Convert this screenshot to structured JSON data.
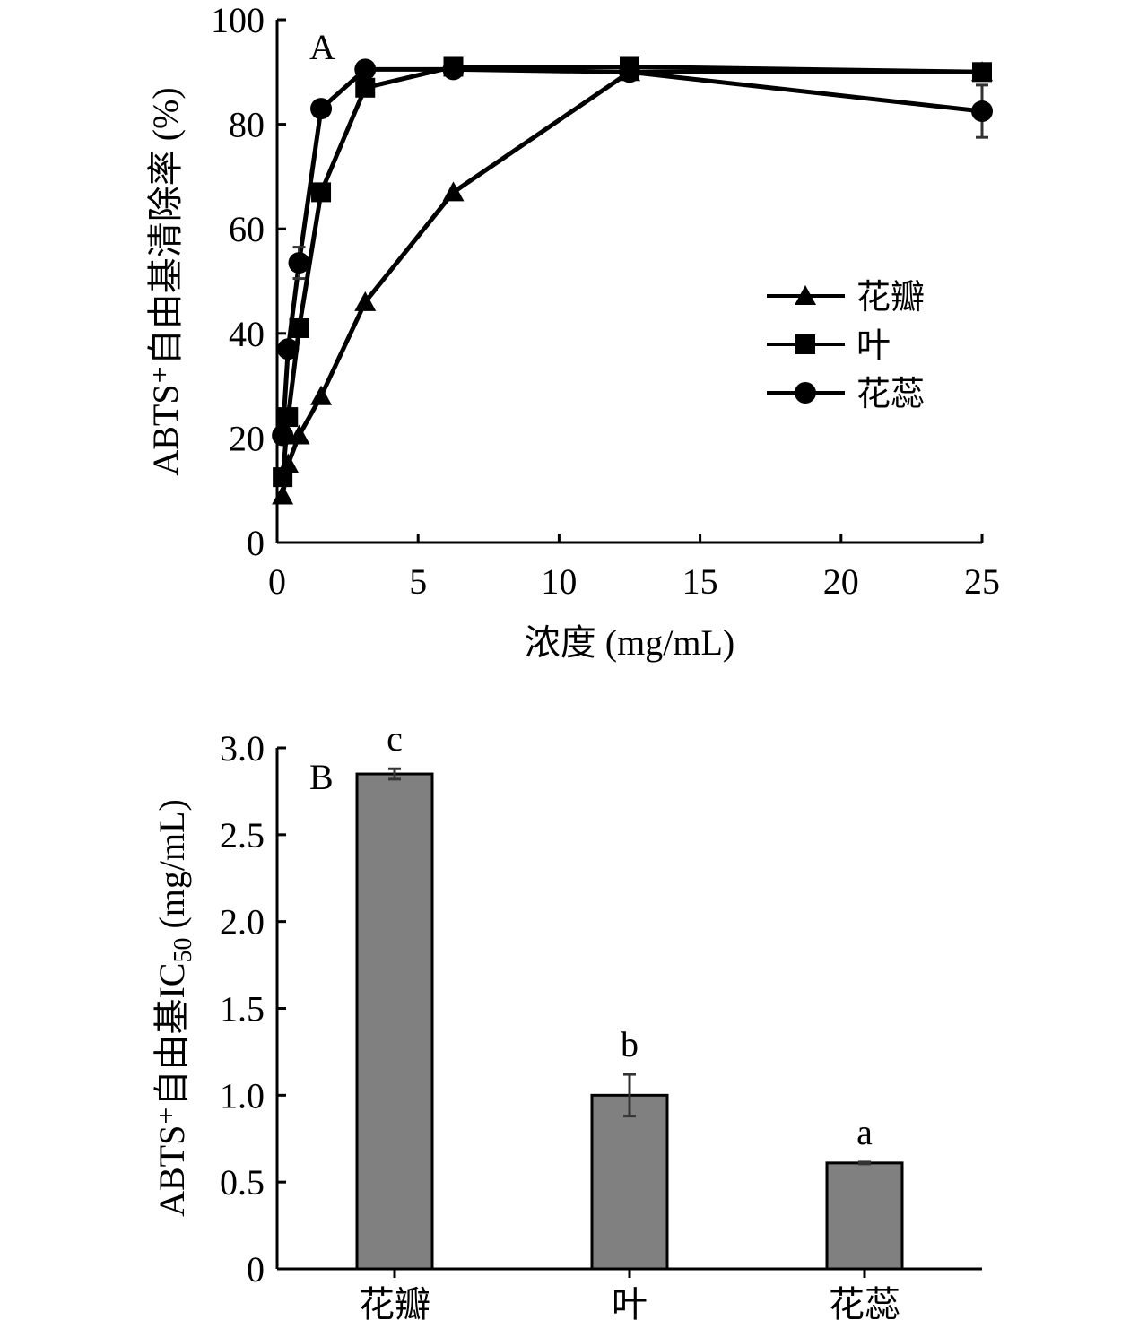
{
  "chart_data": [
    {
      "type": "line",
      "panel_label": "A",
      "xlabel": "浓度 (mg/mL)",
      "ylabel": "ABTS⁺自由基清除率 (%)",
      "xlim": [
        0,
        25
      ],
      "ylim": [
        0,
        100
      ],
      "xticks": [
        "0",
        "5",
        "10",
        "15",
        "20",
        "25"
      ],
      "yticks": [
        "0",
        "20",
        "40",
        "60",
        "80",
        "100"
      ],
      "grid": false,
      "legend_position": "center-right",
      "x": [
        0.195,
        0.39,
        0.78,
        1.56,
        3.125,
        6.25,
        12.5,
        25
      ],
      "series": [
        {
          "name": "花瓣",
          "marker": "triangle",
          "values": [
            9,
            15,
            20.5,
            28,
            46,
            67,
            90,
            90
          ]
        },
        {
          "name": "叶",
          "marker": "square",
          "values": [
            12.5,
            24,
            41,
            67,
            87,
            91,
            91,
            90
          ]
        },
        {
          "name": "花蕊",
          "marker": "circle",
          "values": [
            20.5,
            37,
            53.5,
            83,
            90.5,
            90.5,
            90,
            82.5
          ],
          "errors": [
            0,
            0,
            3,
            0,
            0,
            0,
            0,
            5
          ]
        }
      ]
    },
    {
      "type": "bar",
      "panel_label": "B",
      "ylabel_main": "ABTS⁺自由基IC",
      "ylabel_sub": "50",
      "ylabel_unit": " (mg/mL)",
      "ylim": [
        0,
        3.0
      ],
      "yticks": [
        "0",
        "0.5",
        "1.0",
        "1.5",
        "2.0",
        "2.5",
        "3.0"
      ],
      "categories": [
        "花瓣",
        "叶",
        "花蕊"
      ],
      "values": [
        2.85,
        1.0,
        0.61
      ],
      "errors": [
        0.03,
        0.12,
        0.005
      ],
      "significance": [
        "c",
        "b",
        "a"
      ],
      "bar_color": "#808080"
    }
  ]
}
